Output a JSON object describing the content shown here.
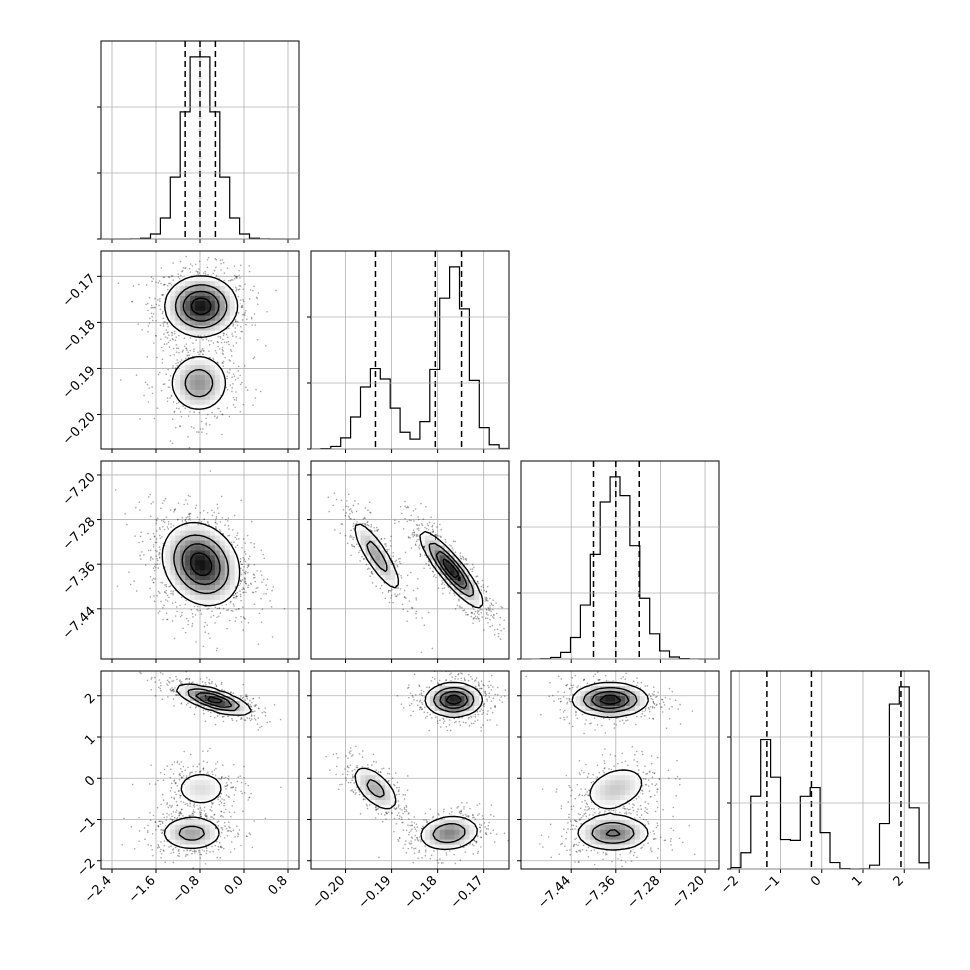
{
  "chart_data": {
    "type": "corner",
    "title": "",
    "grid": true,
    "parameters": [
      {
        "label": "",
        "range": [
          -2.6,
          1.0
        ],
        "ticks": [
          -2.4,
          -1.6,
          -0.8,
          0.0,
          0.8
        ],
        "tick_labels": [
          "−2.4",
          "−1.6",
          "−0.8",
          "0.0",
          "0.8"
        ],
        "quantiles": [
          -1.07,
          -0.8,
          -0.52
        ],
        "modes": [
          {
            "mu": -0.8,
            "sd": 0.3,
            "w": 1.0
          }
        ]
      },
      {
        "label": "",
        "range": [
          -0.2075,
          -0.1645
        ],
        "ticks": [
          -0.2,
          -0.19,
          -0.18,
          -0.17
        ],
        "tick_labels": [
          "−0.20",
          "−0.19",
          "−0.18",
          "−0.17"
        ],
        "quantiles": [
          -0.1935,
          -0.1805,
          -0.1748
        ],
        "modes": [
          {
            "mu": -0.1932,
            "sd": 0.0034,
            "w": 0.32
          },
          {
            "mu": -0.1765,
            "sd": 0.0032,
            "w": 0.68
          }
        ]
      },
      {
        "label": "",
        "range": [
          -7.53,
          -7.175
        ],
        "ticks": [
          -7.44,
          -7.36,
          -7.28,
          -7.2
        ],
        "tick_labels": [
          "−7.44",
          "−7.36",
          "−7.28",
          "−7.20"
        ],
        "quantiles": [
          -7.4,
          -7.36,
          -7.318
        ],
        "modes": [
          {
            "mu": -7.36,
            "sd": 0.035,
            "w": 1.0
          }
        ]
      },
      {
        "label": "",
        "range": [
          -2.2,
          2.6
        ],
        "ticks": [
          -2,
          -1,
          0,
          1,
          2
        ],
        "tick_labels": [
          "−2",
          "−1",
          "0",
          "1",
          "2"
        ],
        "quantiles": [
          -1.33,
          -0.25,
          1.92
        ],
        "modes": [
          {
            "mu": -1.33,
            "sd": 0.25,
            "w": 0.33
          },
          {
            "mu": -0.25,
            "sd": 0.25,
            "w": 0.22
          },
          {
            "mu": 1.9,
            "sd": 0.22,
            "w": 0.45
          }
        ]
      }
    ],
    "pairs": [
      {
        "row": 1,
        "col": 0,
        "blobs": [
          {
            "x": -0.78,
            "y": -0.1765,
            "sx": 0.32,
            "sy": 0.0032,
            "rho": 0.0,
            "w": 0.68
          },
          {
            "x": -0.82,
            "y": -0.1932,
            "sx": 0.28,
            "sy": 0.0033,
            "rho": 0.0,
            "w": 0.32
          }
        ]
      },
      {
        "row": 2,
        "col": 0,
        "blobs": [
          {
            "x": -0.78,
            "y": -7.36,
            "sx": 0.34,
            "sy": 0.036,
            "rho": -0.2,
            "w": 1.0
          }
        ]
      },
      {
        "row": 2,
        "col": 1,
        "blobs": [
          {
            "x": -0.1932,
            "y": -7.345,
            "sx": 0.0028,
            "sy": 0.034,
            "rho": -0.85,
            "w": 0.32
          },
          {
            "x": -0.177,
            "y": -7.37,
            "sx": 0.0033,
            "sy": 0.033,
            "rho": -0.88,
            "w": 0.68
          }
        ]
      },
      {
        "row": 3,
        "col": 0,
        "blobs": [
          {
            "x": -0.55,
            "y": 1.9,
            "sx": 0.33,
            "sy": 0.18,
            "rho": -0.7,
            "w": 0.45
          },
          {
            "x": -0.78,
            "y": -0.25,
            "sx": 0.3,
            "sy": 0.28,
            "rho": 0.0,
            "w": 0.22
          },
          {
            "x": -0.95,
            "y": -1.33,
            "sx": 0.3,
            "sy": 0.22,
            "rho": 0.0,
            "w": 0.33
          }
        ]
      },
      {
        "row": 3,
        "col": 1,
        "blobs": [
          {
            "x": -0.1765,
            "y": 1.9,
            "sx": 0.003,
            "sy": 0.2,
            "rho": 0.0,
            "w": 0.45
          },
          {
            "x": -0.1935,
            "y": -0.25,
            "sx": 0.0027,
            "sy": 0.3,
            "rho": -0.6,
            "w": 0.22
          },
          {
            "x": -0.1775,
            "y": -1.33,
            "sx": 0.0034,
            "sy": 0.22,
            "rho": 0.15,
            "w": 0.33
          }
        ]
      },
      {
        "row": 3,
        "col": 2,
        "blobs": [
          {
            "x": -7.37,
            "y": 1.9,
            "sx": 0.033,
            "sy": 0.2,
            "rho": 0.0,
            "w": 0.45
          },
          {
            "x": -7.36,
            "y": -0.25,
            "sx": 0.033,
            "sy": 0.32,
            "rho": 0.3,
            "w": 0.22
          },
          {
            "x": -7.365,
            "y": -1.33,
            "sx": 0.034,
            "sy": 0.22,
            "rho": 0.0,
            "w": 0.33
          }
        ]
      }
    ]
  }
}
